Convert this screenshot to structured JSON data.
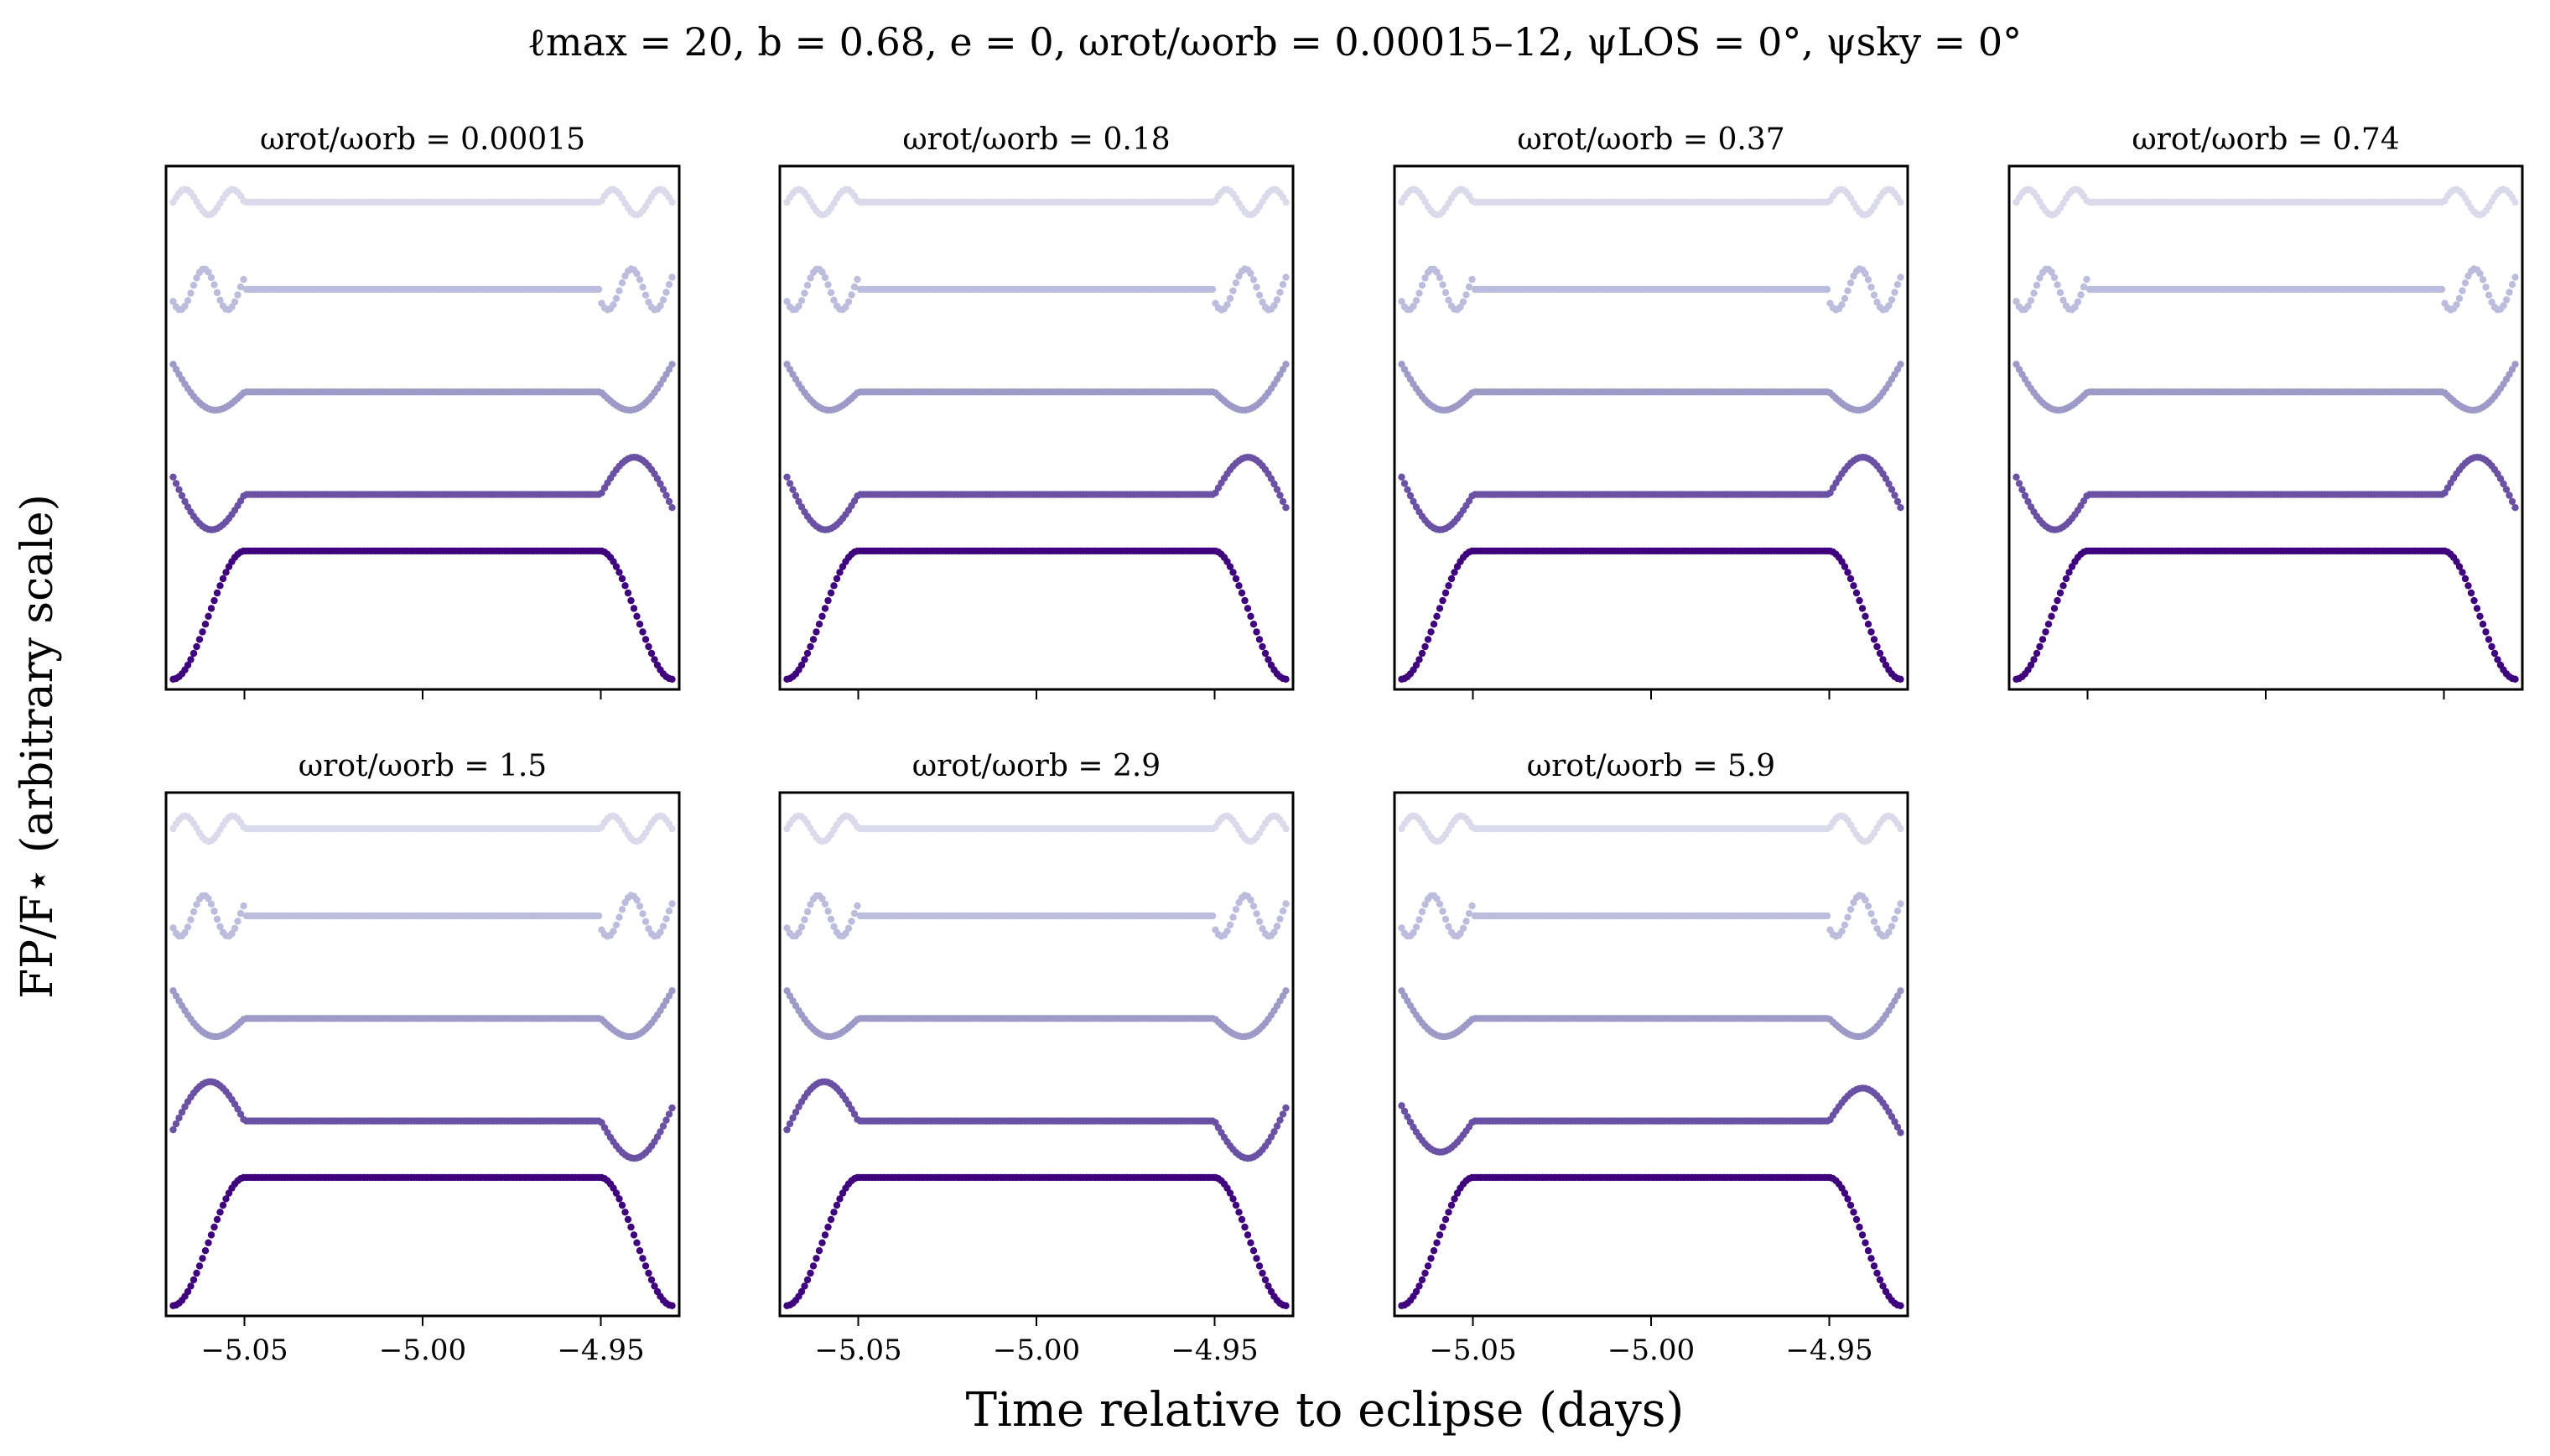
{
  "figure": {
    "suptitle": "ℓmax = 20, b = 0.68, e = 0, ωrot/ωorb = 0.00015–12, ψLOS = 0°, ψsky = 0°",
    "xlabel": "Time relative to eclipse (days)",
    "ylabel": "FP/F⋆ (arbitrary scale)"
  },
  "series_colors": [
    "#dadaeb",
    "#bcbddc",
    "#9e9ac8",
    "#6a51a3",
    "#3f007d"
  ],
  "chart_data": [
    {
      "type": "scatter",
      "title": "ωrot/ωorb = 0.00015",
      "xlim": [
        -5.072,
        -4.928
      ],
      "x_ticks": [
        -5.05,
        -5.0,
        -4.95
      ],
      "x_tick_labels": [],
      "x_range": [
        -5.07,
        -4.93
      ],
      "ingress_egress": [
        [
          -5.07,
          -5.05
        ],
        [
          -4.95,
          -4.93
        ]
      ],
      "series": [
        {
          "offset": 0.95,
          "amp": 0.05,
          "shape": "osc2",
          "phase": 0.0
        },
        {
          "offset": 0.78,
          "amp": 0.08,
          "shape": "osc2",
          "phase": 0.6
        },
        {
          "offset": 0.58,
          "amp": 0.12,
          "shape": "dip",
          "phase": 0.0
        },
        {
          "offset": 0.38,
          "amp": 0.17,
          "shape": "dipbump",
          "phase": 0.0
        },
        {
          "offset": 0.02,
          "amp": 0.25,
          "shape": "transit",
          "phase": 0.0
        }
      ]
    },
    {
      "type": "scatter",
      "title": "ωrot/ωorb = 0.18",
      "xlim": [
        -5.072,
        -4.928
      ],
      "x_ticks": [
        -5.05,
        -5.0,
        -4.95
      ],
      "x_tick_labels": [],
      "series": [
        {
          "offset": 0.95,
          "amp": 0.05,
          "shape": "osc2",
          "phase": 0.0
        },
        {
          "offset": 0.78,
          "amp": 0.08,
          "shape": "osc2",
          "phase": 0.6
        },
        {
          "offset": 0.58,
          "amp": 0.12,
          "shape": "dip",
          "phase": 0.0
        },
        {
          "offset": 0.38,
          "amp": 0.17,
          "shape": "dipbump",
          "phase": 0.0
        },
        {
          "offset": 0.02,
          "amp": 0.25,
          "shape": "transit",
          "phase": 0.0
        }
      ]
    },
    {
      "type": "scatter",
      "title": "ωrot/ωorb = 0.37",
      "xlim": [
        -5.072,
        -4.928
      ],
      "x_ticks": [
        -5.05,
        -5.0,
        -4.95
      ],
      "x_tick_labels": [],
      "series": [
        {
          "offset": 0.95,
          "amp": 0.05,
          "shape": "osc2",
          "phase": 0.0
        },
        {
          "offset": 0.78,
          "amp": 0.08,
          "shape": "osc2",
          "phase": 0.6
        },
        {
          "offset": 0.58,
          "amp": 0.12,
          "shape": "dip",
          "phase": 0.0
        },
        {
          "offset": 0.38,
          "amp": 0.17,
          "shape": "dipbump",
          "phase": 0.0
        },
        {
          "offset": 0.02,
          "amp": 0.25,
          "shape": "transit",
          "phase": 0.0
        }
      ]
    },
    {
      "type": "scatter",
      "title": "ωrot/ωorb = 0.74",
      "xlim": [
        -5.072,
        -4.928
      ],
      "x_ticks": [
        -5.05,
        -5.0,
        -4.95
      ],
      "x_tick_labels": [],
      "series": [
        {
          "offset": 0.95,
          "amp": 0.05,
          "shape": "osc2",
          "phase": 0.0
        },
        {
          "offset": 0.78,
          "amp": 0.08,
          "shape": "osc2",
          "phase": 0.6
        },
        {
          "offset": 0.58,
          "amp": 0.12,
          "shape": "dip",
          "phase": 0.0
        },
        {
          "offset": 0.38,
          "amp": 0.17,
          "shape": "dipbump",
          "phase": 0.0
        },
        {
          "offset": 0.02,
          "amp": 0.25,
          "shape": "transit",
          "phase": 0.0
        }
      ]
    },
    {
      "type": "scatter",
      "title": "ωrot/ωorb = 1.5",
      "xlim": [
        -5.072,
        -4.928
      ],
      "x_ticks": [
        -5.05,
        -5.0,
        -4.95
      ],
      "x_tick_labels": [
        "−5.05",
        "−5.00",
        "−4.95"
      ],
      "series": [
        {
          "offset": 0.95,
          "amp": 0.05,
          "shape": "osc2",
          "phase": 0.0
        },
        {
          "offset": 0.78,
          "amp": 0.08,
          "shape": "osc2",
          "phase": 0.6
        },
        {
          "offset": 0.58,
          "amp": 0.12,
          "shape": "dip",
          "phase": 0.0
        },
        {
          "offset": 0.38,
          "amp": 0.17,
          "shape": "bumpdip",
          "phase": 0.0
        },
        {
          "offset": 0.02,
          "amp": 0.25,
          "shape": "transit",
          "phase": 0.0
        }
      ]
    },
    {
      "type": "scatter",
      "title": "ωrot/ωorb = 2.9",
      "xlim": [
        -5.072,
        -4.928
      ],
      "x_ticks": [
        -5.05,
        -5.0,
        -4.95
      ],
      "x_tick_labels": [
        "−5.05",
        "−5.00",
        "−4.95"
      ],
      "series": [
        {
          "offset": 0.95,
          "amp": 0.05,
          "shape": "osc2",
          "phase": 0.0
        },
        {
          "offset": 0.78,
          "amp": 0.08,
          "shape": "osc2",
          "phase": 0.6
        },
        {
          "offset": 0.58,
          "amp": 0.12,
          "shape": "dip",
          "phase": 0.0
        },
        {
          "offset": 0.38,
          "amp": 0.17,
          "shape": "bumpdip",
          "phase": 0.0
        },
        {
          "offset": 0.02,
          "amp": 0.25,
          "shape": "transit",
          "phase": 0.0
        }
      ]
    },
    {
      "type": "scatter",
      "title": "ωrot/ωorb = 5.9",
      "xlim": [
        -5.072,
        -4.928
      ],
      "x_ticks": [
        -5.05,
        -5.0,
        -4.95
      ],
      "x_tick_labels": [
        "−5.05",
        "−5.00",
        "−4.95"
      ],
      "series": [
        {
          "offset": 0.95,
          "amp": 0.05,
          "shape": "osc2",
          "phase": 0.0
        },
        {
          "offset": 0.78,
          "amp": 0.08,
          "shape": "osc2",
          "phase": 0.6
        },
        {
          "offset": 0.58,
          "amp": 0.12,
          "shape": "dip",
          "phase": 0.0
        },
        {
          "offset": 0.38,
          "amp": 0.15,
          "shape": "dipbump",
          "phase": 0.0
        },
        {
          "offset": 0.02,
          "amp": 0.25,
          "shape": "transit",
          "phase": 0.0
        }
      ]
    }
  ]
}
